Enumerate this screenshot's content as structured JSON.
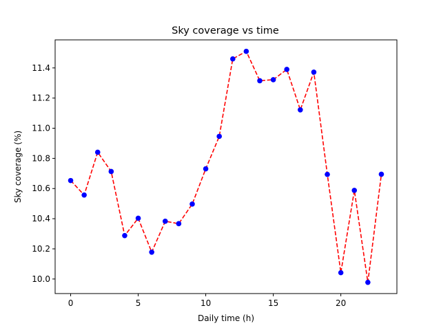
{
  "chart_data": {
    "type": "line",
    "title": "Sky coverage vs time",
    "xlabel": "Daily time (h)",
    "ylabel": "Sky coverage (%)",
    "xlim": [
      -1.15,
      24.15
    ],
    "ylim": [
      9.9035,
      11.586
    ],
    "x_ticks": [
      0,
      5,
      10,
      15,
      20
    ],
    "y_ticks": [
      10.0,
      10.2,
      10.4,
      10.6,
      10.8,
      11.0,
      11.2,
      11.4
    ],
    "x_tick_labels": [
      "0",
      "5",
      "10",
      "15",
      "20"
    ],
    "y_tick_labels": [
      "10.0",
      "10.2",
      "10.4",
      "10.6",
      "10.8",
      "11.0",
      "11.2",
      "11.4"
    ],
    "grid": false,
    "series": [
      {
        "x": [
          0,
          1,
          2,
          3,
          4,
          5,
          6,
          7,
          8,
          9,
          10,
          11,
          12,
          13,
          14,
          15,
          16,
          17,
          18,
          19,
          20,
          21,
          22,
          23
        ],
        "values": [
          10.653,
          10.557,
          10.841,
          10.713,
          10.288,
          10.403,
          10.178,
          10.383,
          10.367,
          10.497,
          10.731,
          10.946,
          11.46,
          11.51,
          11.315,
          11.322,
          11.39,
          11.122,
          11.372,
          10.694,
          10.042,
          10.588,
          9.978,
          10.695
        ],
        "line_color": "#ff0000",
        "line_style": "dashed",
        "marker_color": "#0000ff"
      }
    ]
  }
}
